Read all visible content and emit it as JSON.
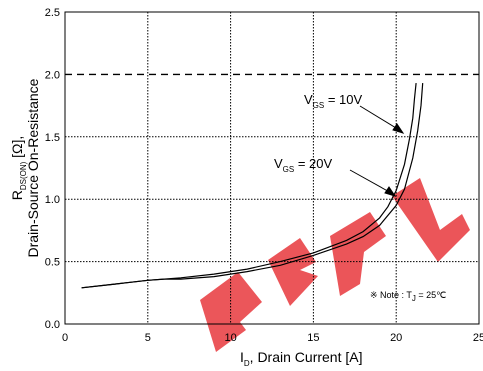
{
  "chart_data": {
    "type": "line",
    "xlabel": "I",
    "xlabel_sub": "D",
    "xlabel_rest": ", Drain Current [A]",
    "ylabel_line1_main": "R",
    "ylabel_line1_sub": "DS(ON)",
    "ylabel_line1_rest": " [Ω],",
    "ylabel_line2": "Drain-Source On-Resistance",
    "xlim": [
      0,
      25
    ],
    "ylim": [
      0.0,
      2.5
    ],
    "xticks": [
      "0",
      "5",
      "10",
      "15",
      "20",
      "25"
    ],
    "yticks": [
      "0.0",
      "0.5",
      "1.0",
      "1.5",
      "2.0",
      "2.5"
    ],
    "grid": true,
    "series": [
      {
        "name_main": "V",
        "name_sub": "GS",
        "name_rest": " = 10V",
        "x": [
          1,
          3,
          5,
          7,
          9,
          11,
          13,
          15,
          17,
          18,
          19,
          19.5,
          20,
          20.5,
          20.8,
          21.0,
          21.1,
          21.2
        ],
        "y": [
          0.29,
          0.32,
          0.35,
          0.37,
          0.4,
          0.44,
          0.5,
          0.57,
          0.67,
          0.74,
          0.85,
          0.94,
          1.07,
          1.28,
          1.48,
          1.65,
          1.8,
          1.93
        ]
      },
      {
        "name_main": "V",
        "name_sub": "GS",
        "name_rest": " = 20V",
        "x": [
          1,
          3,
          5,
          6,
          7,
          9,
          11,
          13,
          15,
          17,
          18,
          19,
          20,
          20.5,
          21.0,
          21.3,
          21.5,
          21.6
        ],
        "y": [
          0.29,
          0.32,
          0.35,
          0.36,
          0.36,
          0.38,
          0.42,
          0.47,
          0.55,
          0.64,
          0.7,
          0.79,
          0.95,
          1.08,
          1.33,
          1.55,
          1.75,
          1.93
        ]
      }
    ],
    "note_symbol": "※",
    "note_text_pre": " Note : T",
    "note_sub": "J",
    "note_text_post": " = 25℃"
  },
  "colors": {
    "line": "#000000",
    "grid": "#000000",
    "watermark": "#e8383d"
  }
}
